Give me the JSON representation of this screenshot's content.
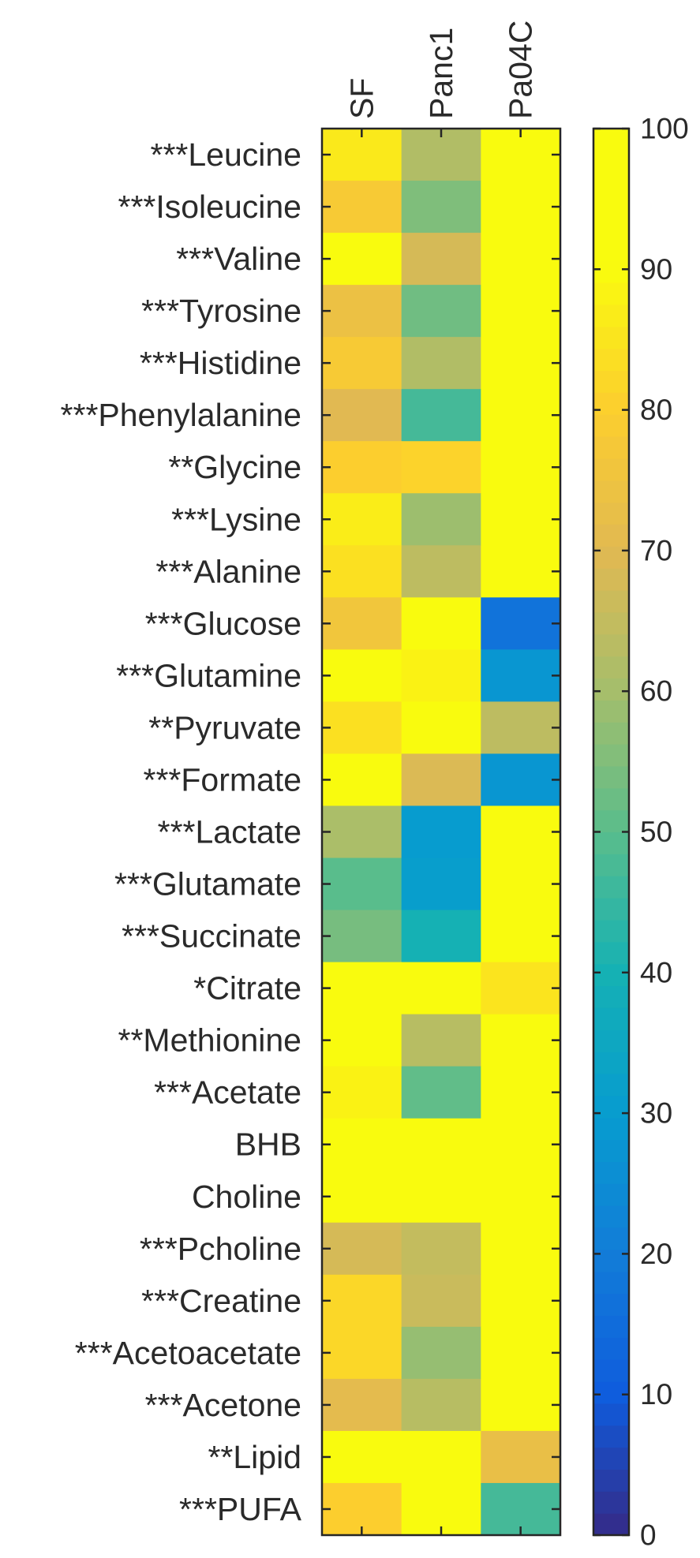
{
  "chart_data": {
    "type": "heatmap",
    "columns": [
      "SF",
      "Panc1",
      "Pa04C"
    ],
    "rows": [
      "***Leucine",
      "***Isoleucine",
      "***Valine",
      "***Tyrosine",
      "***Histidine",
      "***Phenylalanine",
      "**Glycine",
      "***Lysine",
      "***Alanine",
      "***Glucose",
      "***Glutamine",
      "**Pyruvate",
      "***Formate",
      "***Lactate",
      "***Glutamate",
      "***Succinate",
      "*Citrate",
      "**Methionine",
      "***Acetate",
      "BHB",
      "Choline",
      "***Pcholine",
      "***Creatine",
      "***Acetoacetate",
      "***Acetone",
      "**Lipid",
      "***PUFA"
    ],
    "values": [
      [
        86,
        62,
        100
      ],
      [
        78,
        55,
        100
      ],
      [
        90,
        68,
        100
      ],
      [
        74,
        53,
        100
      ],
      [
        78,
        62,
        100
      ],
      [
        70,
        47,
        100
      ],
      [
        80,
        81,
        100
      ],
      [
        87,
        59,
        100
      ],
      [
        84,
        64,
        100
      ],
      [
        76,
        100,
        17
      ],
      [
        100,
        88,
        28
      ],
      [
        84,
        100,
        64
      ],
      [
        100,
        69,
        28
      ],
      [
        61,
        30,
        100
      ],
      [
        50,
        31,
        100
      ],
      [
        54,
        40,
        100
      ],
      [
        92,
        100,
        85
      ],
      [
        100,
        63,
        98
      ],
      [
        88,
        51,
        99
      ],
      [
        95,
        100,
        96
      ],
      [
        93,
        100,
        96
      ],
      [
        68,
        65,
        100
      ],
      [
        82,
        66,
        100
      ],
      [
        82,
        58,
        100
      ],
      [
        71,
        63,
        100
      ],
      [
        100,
        100,
        73
      ],
      [
        80,
        100,
        47
      ]
    ],
    "colorbar": {
      "min": 0,
      "max": 100,
      "ticks": [
        0,
        10,
        20,
        30,
        40,
        50,
        60,
        70,
        80,
        90,
        100
      ],
      "colormap": "parula"
    }
  }
}
